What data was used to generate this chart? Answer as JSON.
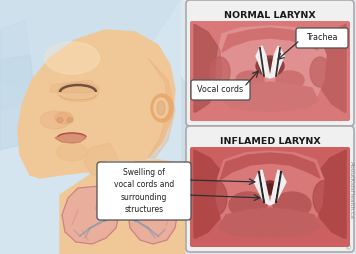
{
  "bg_color": "#dce8f0",
  "title_normal": "NORMAL LARYNX",
  "title_inflamed": "INFLAMED LARYNX",
  "label_trachea": "Trachea",
  "label_vocal_cords": "Vocal cords",
  "label_swelling": "Swelling of\nvocal cords and\nsurrounding\nstructures",
  "watermark": "AboutKidsHealth.ca",
  "panel_bg": "#f2f2f2",
  "panel_border": "#b0b0b0",
  "panel_inner_bg": "#e08080",
  "flesh_light": "#f0c898",
  "flesh_mid": "#e8aa70",
  "flesh_dark": "#d09060",
  "pink_tissue": "#d87070",
  "pink_dark": "#c05858",
  "pink_light": "#eca090",
  "pink_mid": "#d87878",
  "white_cord": "#f5f5f0",
  "dark_cord": "#282828",
  "lung_color": "#e8a0a0",
  "trachea_ring": "#b8c8d8",
  "callout_bg": "#ffffff",
  "callout_border": "#505050",
  "watermark_color": "#808080"
}
